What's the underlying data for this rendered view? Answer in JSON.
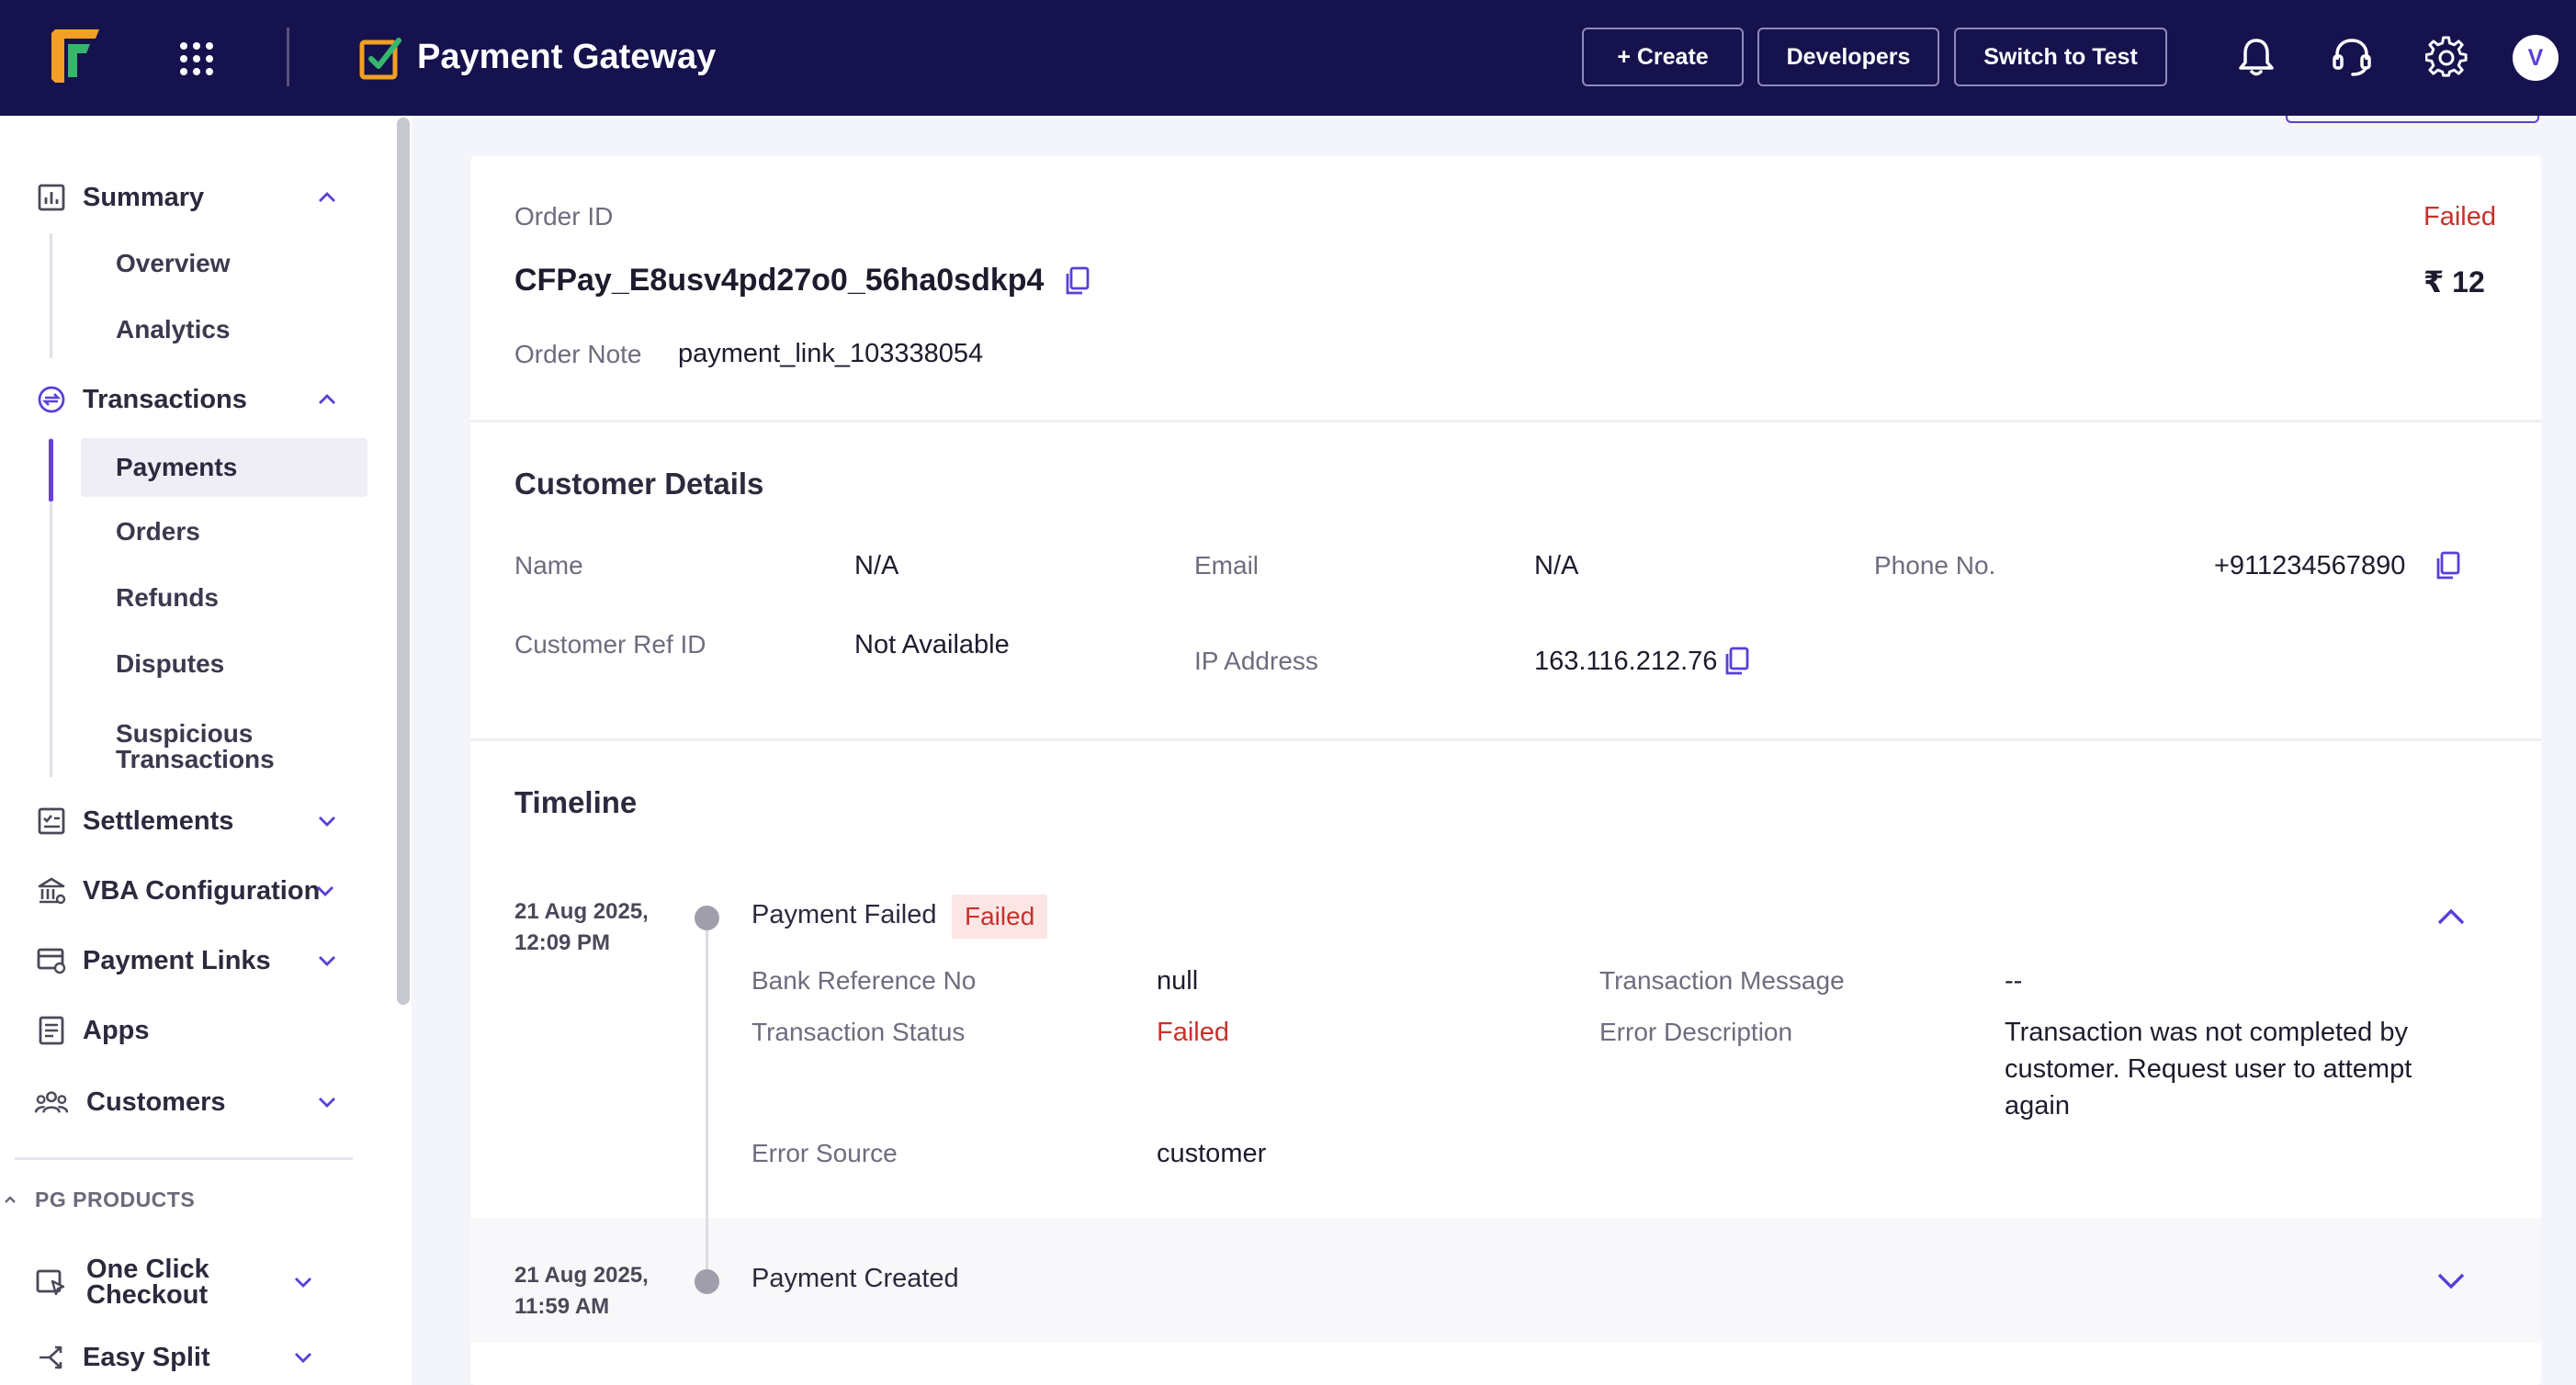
{
  "topbar": {
    "product_name": "Payment Gateway",
    "create_label": "+ Create",
    "developers_label": "Developers",
    "switch_label": "Switch to Test",
    "avatar_initial": "V",
    "colors": {
      "background": "#16124e",
      "accent": "#6a3fe0"
    }
  },
  "sidebar": {
    "summary": {
      "label": "Summary",
      "icon": "chart-icon",
      "children": [
        "Overview",
        "Analytics"
      ]
    },
    "transactions": {
      "label": "Transactions",
      "icon": "transactions-icon",
      "children": [
        "Payments",
        "Orders",
        "Refunds",
        "Disputes",
        "Suspicious Transactions"
      ],
      "active_child": "Payments"
    },
    "items": [
      {
        "label": "Settlements",
        "icon": "settlements-icon"
      },
      {
        "label": "VBA Configuration",
        "icon": "bank-icon"
      },
      {
        "label": "Payment Links",
        "icon": "payment-link-icon"
      },
      {
        "label": "Apps",
        "icon": "apps-icon"
      },
      {
        "label": "Customers",
        "icon": "customers-icon"
      }
    ],
    "section_heading": "PG PRODUCTS",
    "products": [
      {
        "label": "One Click Checkout",
        "icon": "checkout-icon"
      },
      {
        "label": "Easy Split",
        "icon": "split-icon"
      }
    ]
  },
  "order": {
    "id_label": "Order ID",
    "id": "CFPay_E8usv4pd27o0_56ha0sdkp4",
    "status": "Failed",
    "amount": "₹ 12",
    "note_label": "Order Note",
    "note": "payment_link_103338054",
    "colors": {
      "failed": "#c8312b"
    }
  },
  "customer": {
    "title": "Customer Details",
    "name_label": "Name",
    "name": "N/A",
    "email_label": "Email",
    "email": "N/A",
    "phone_label": "Phone No.",
    "phone": "+911234567890",
    "ref_label": "Customer Ref ID",
    "ref": "Not Available",
    "ip_label": "IP Address",
    "ip": "163.116.212.76"
  },
  "timeline": {
    "title": "Timeline",
    "events": [
      {
        "date": "21 Aug 2025,",
        "time": "12:09 PM",
        "title": "Payment Failed",
        "badge": "Failed",
        "expanded": true,
        "details": {
          "bank_ref_label": "Bank Reference No",
          "bank_ref": "null",
          "txn_msg_label": "Transaction Message",
          "txn_msg": "--",
          "txn_status_label": "Transaction Status",
          "txn_status": "Failed",
          "err_desc_label": "Error Description",
          "err_desc": "Transaction was not completed by customer. Request user to attempt again",
          "err_source_label": "Error Source",
          "err_source": "customer"
        }
      },
      {
        "date": "21 Aug 2025,",
        "time": "11:59 AM",
        "title": "Payment Created",
        "expanded": false
      }
    ]
  }
}
